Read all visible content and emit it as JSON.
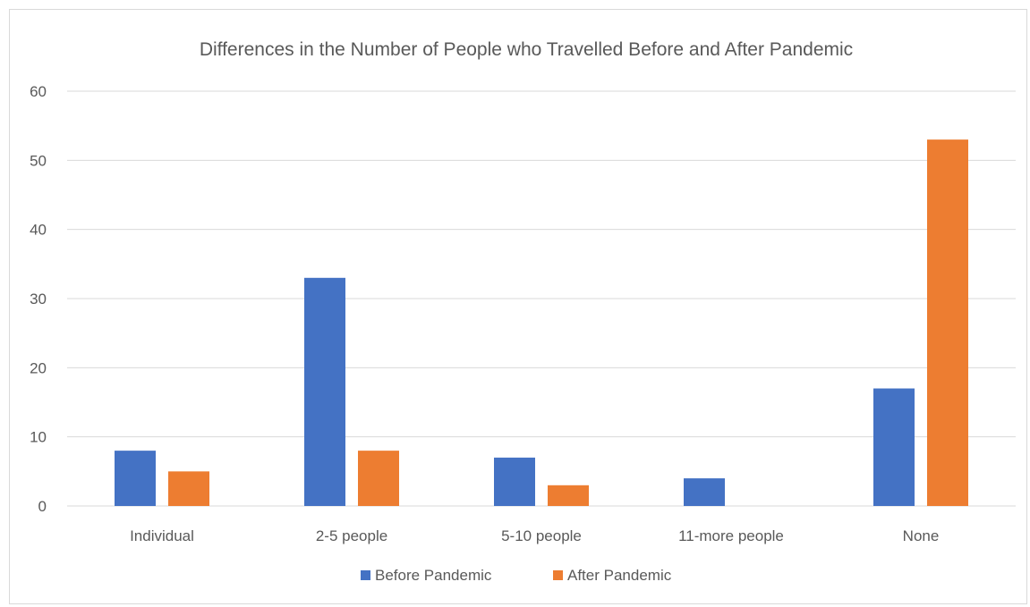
{
  "chart_data": {
    "type": "bar",
    "title": "Differences in the Number of People who Travelled Before and After Pandemic",
    "categories": [
      "Individual",
      "2-5 people",
      "5-10 people",
      "11-more people",
      "None"
    ],
    "series": [
      {
        "name": "Before Pandemic",
        "color": "#4472c4",
        "values": [
          8,
          33,
          7,
          4,
          17
        ]
      },
      {
        "name": "After Pandemic",
        "color": "#ed7d31",
        "values": [
          5,
          8,
          3,
          0,
          53
        ]
      }
    ],
    "ylim": [
      0,
      60
    ],
    "yticks": [
      0,
      10,
      20,
      30,
      40,
      50,
      60
    ],
    "grid": true,
    "legend": "bottom"
  }
}
